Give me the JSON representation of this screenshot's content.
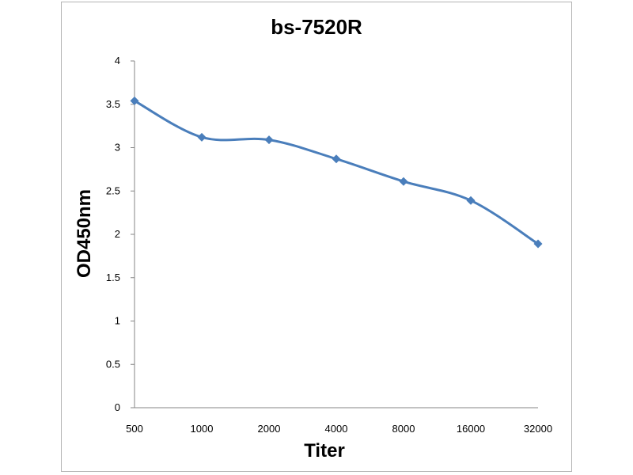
{
  "chart_data": {
    "type": "line",
    "title": "bs-7520R",
    "xlabel": "Titer",
    "ylabel": "OD450nm",
    "categories": [
      "500",
      "1000",
      "2000",
      "4000",
      "8000",
      "16000",
      "32000"
    ],
    "series": [
      {
        "values": [
          3.54,
          3.12,
          3.09,
          2.87,
          2.61,
          2.39,
          1.89
        ]
      }
    ],
    "ylim": [
      0,
      4
    ],
    "yticks": [
      "0",
      "0.5",
      "1",
      "1.5",
      "2",
      "2.5",
      "3",
      "3.5",
      "4"
    ],
    "grid": false,
    "legend": "none",
    "colors": {
      "line": "#4a7ebb",
      "axis": "#868686",
      "frame": "#b4b4b4"
    }
  }
}
